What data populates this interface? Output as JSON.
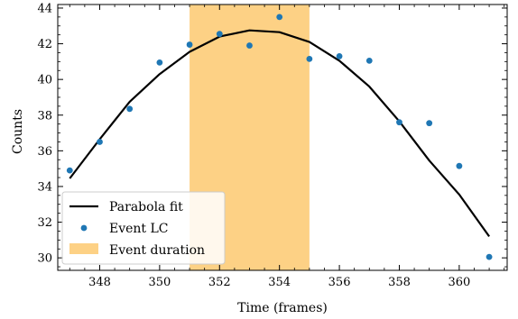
{
  "chart_data": {
    "type": "scatter",
    "xlabel": "Time (frames)",
    "ylabel": "Counts",
    "xlim": [
      346.6,
      361.6
    ],
    "ylim": [
      29.3,
      44.2
    ],
    "xticks": [
      348,
      350,
      352,
      354,
      356,
      358,
      360
    ],
    "yticks": [
      30,
      32,
      34,
      36,
      38,
      40,
      42,
      44
    ],
    "grid": false,
    "legend_position": "lower-left",
    "shaded_region": {
      "name": "Event duration",
      "x_start": 351,
      "x_end": 355,
      "color": "#fdd185"
    },
    "series": [
      {
        "name": "Event LC",
        "kind": "scatter",
        "color": "#1f77b4",
        "x": [
          347,
          348,
          349,
          350,
          351,
          352,
          353,
          354,
          355,
          356,
          357,
          358,
          359,
          360,
          361
        ],
        "y": [
          34.9,
          36.5,
          38.35,
          40.95,
          41.95,
          42.55,
          41.9,
          43.5,
          41.15,
          41.3,
          41.05,
          37.6,
          37.55,
          35.15,
          30.05
        ]
      },
      {
        "name": "Parabola fit",
        "kind": "line",
        "color": "#000000",
        "x": [
          347,
          348,
          349,
          350,
          351,
          352,
          353,
          354,
          355,
          356,
          357,
          358,
          359,
          360,
          361
        ],
        "y": [
          34.45,
          36.65,
          38.75,
          40.3,
          41.55,
          42.4,
          42.75,
          42.65,
          42.1,
          41.05,
          39.6,
          37.65,
          35.45,
          33.55,
          31.2
        ]
      }
    ]
  }
}
